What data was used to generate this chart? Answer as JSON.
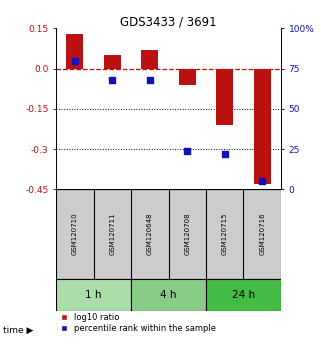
{
  "title": "GDS3433 / 3691",
  "samples": [
    "GSM120710",
    "GSM120711",
    "GSM120648",
    "GSM120708",
    "GSM120715",
    "GSM120716"
  ],
  "log10_ratio": [
    0.13,
    0.05,
    0.07,
    -0.06,
    -0.21,
    -0.43
  ],
  "percentile_rank": [
    80,
    68,
    68,
    24,
    22,
    5
  ],
  "ylim_left": [
    0.15,
    -0.45
  ],
  "yticks_left": [
    0.15,
    0.0,
    -0.15,
    -0.3,
    -0.45
  ],
  "yticks_right": [
    100,
    75,
    50,
    25,
    0
  ],
  "bar_color": "#bb1111",
  "dot_color": "#1111bb",
  "hline_color": "#cc0000",
  "dotted_line_color": "#000000",
  "time_groups": [
    {
      "label": "1 h",
      "start": 0,
      "end": 1,
      "color": "#aaddaa"
    },
    {
      "label": "4 h",
      "start": 2,
      "end": 3,
      "color": "#88cc88"
    },
    {
      "label": "24 h",
      "start": 4,
      "end": 5,
      "color": "#44bb44"
    }
  ],
  "legend_red_label": "log10 ratio",
  "legend_blue_label": "percentile rank within the sample",
  "bar_width": 0.45,
  "dot_size": 25
}
